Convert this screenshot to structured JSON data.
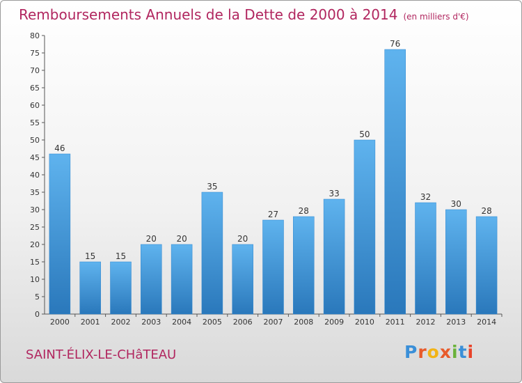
{
  "header": {
    "title": "Remboursements Annuels de la Dette de 2000 à 2014",
    "unit": "(en milliers d'€)"
  },
  "footer": {
    "commune": "SAINT-ÉLIX-LE-CHâTEAU",
    "logo_text": "Proxiti",
    "logo_colors": [
      "#3a8fd8",
      "#e85a2a",
      "#f2b416",
      "#e85a2a",
      "#6ab23a",
      "#3a8fd8",
      "#e8432a"
    ]
  },
  "colors": {
    "title": "#b1265f",
    "bar": "#3d9ae0"
  },
  "chart_data": {
    "type": "bar",
    "title": "Remboursements Annuels de la Dette de 2000 à 2014",
    "xlabel": "",
    "ylabel": "",
    "categories": [
      "2000",
      "2001",
      "2002",
      "2003",
      "2004",
      "2005",
      "2006",
      "2007",
      "2008",
      "2009",
      "2010",
      "2011",
      "2012",
      "2013",
      "2014"
    ],
    "values": [
      46,
      15,
      15,
      20,
      20,
      35,
      20,
      27,
      28,
      33,
      50,
      76,
      32,
      30,
      28
    ],
    "ylim": [
      0,
      80
    ],
    "yticks": [
      0,
      5,
      10,
      15,
      20,
      25,
      30,
      35,
      40,
      45,
      50,
      55,
      60,
      65,
      70,
      75,
      80
    ],
    "grid": false,
    "legend": "none"
  }
}
